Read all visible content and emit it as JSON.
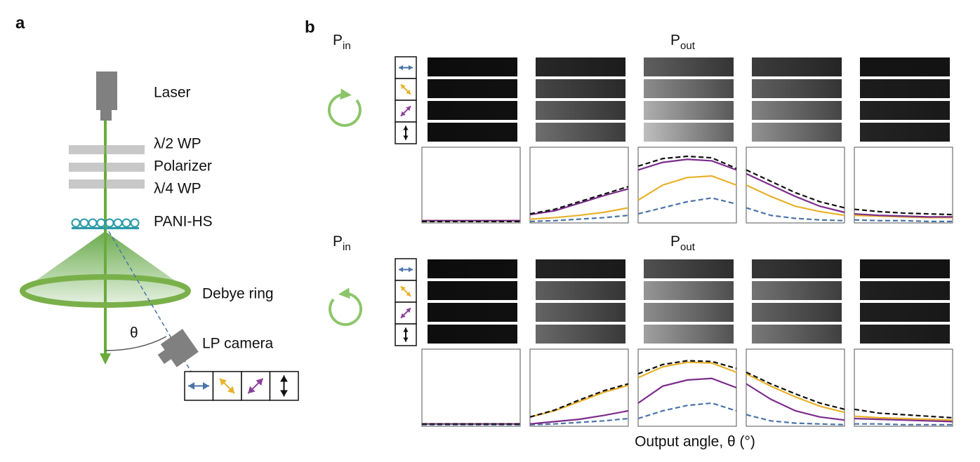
{
  "panel_a": {
    "letter": "a",
    "labels": {
      "laser": "Laser",
      "half_wave": "λ/2 WP",
      "polarizer": "Polarizer",
      "quarter_wave": "λ/4 WP",
      "sample": "PANI-HS",
      "ring": "Debye ring",
      "angle": "θ",
      "camera": "LP camera"
    }
  },
  "panel_b": {
    "letter": "b",
    "input_label": {
      "main": "P",
      "sub": "in"
    },
    "output_label": {
      "main": "P",
      "sub": "out"
    },
    "x_axis_label": "Output angle, θ (°)",
    "series_styles": [
      {
        "color": "#4a74a8",
        "dashed": true
      },
      {
        "color": "#e8b12a",
        "dashed": false
      },
      {
        "color": "#7b2d8b",
        "dashed": false
      },
      {
        "color": "#111111",
        "dashed": true
      }
    ],
    "plots": [
      {
        "panels": [
          {
            "series": [
              {
                "values": [
                  0.02,
                  0.02,
                  0.02,
                  0.02,
                  0.02
                ]
              },
              {
                "values": [
                  0.03,
                  0.03,
                  0.03,
                  0.03,
                  0.03
                ]
              },
              {
                "values": [
                  0.03,
                  0.03,
                  0.03,
                  0.03,
                  0.03
                ]
              },
              {
                "values": [
                  0.02,
                  0.02,
                  0.02,
                  0.02,
                  0.02
                ]
              }
            ]
          },
          {
            "series": [
              {
                "values": [
                  0.02,
                  0.03,
                  0.05,
                  0.07,
                  0.1
                ]
              },
              {
                "values": [
                  0.05,
                  0.07,
                  0.1,
                  0.14,
                  0.2
                ]
              },
              {
                "values": [
                  0.11,
                  0.16,
                  0.26,
                  0.36,
                  0.45
                ]
              },
              {
                "values": [
                  0.12,
                  0.18,
                  0.28,
                  0.38,
                  0.48
                ]
              }
            ]
          },
          {
            "series": [
              {
                "values": [
                  0.12,
                  0.2,
                  0.28,
                  0.33,
                  0.25
                ]
              },
              {
                "values": [
                  0.3,
                  0.5,
                  0.6,
                  0.62,
                  0.5
                ]
              },
              {
                "values": [
                  0.7,
                  0.8,
                  0.84,
                  0.82,
                  0.7
                ]
              },
              {
                "values": [
                  0.75,
                  0.85,
                  0.88,
                  0.86,
                  0.72
                ]
              }
            ]
          },
          {
            "series": [
              {
                "values": [
                  0.2,
                  0.1,
                  0.06,
                  0.04,
                  0.03
                ]
              },
              {
                "values": [
                  0.5,
                  0.35,
                  0.22,
                  0.15,
                  0.1
                ]
              },
              {
                "values": [
                  0.65,
                  0.5,
                  0.35,
                  0.22,
                  0.14
                ]
              },
              {
                "values": [
                  0.7,
                  0.55,
                  0.4,
                  0.28,
                  0.2
                ]
              }
            ]
          },
          {
            "series": [
              {
                "values": [
                  0.04,
                  0.03,
                  0.03,
                  0.02,
                  0.02
                ]
              },
              {
                "values": [
                  0.1,
                  0.09,
                  0.08,
                  0.07,
                  0.07
                ]
              },
              {
                "values": [
                  0.12,
                  0.1,
                  0.09,
                  0.08,
                  0.08
                ]
              },
              {
                "values": [
                  0.18,
                  0.15,
                  0.13,
                  0.12,
                  0.11
                ]
              }
            ]
          }
        ]
      },
      {
        "panels": [
          {
            "series": [
              {
                "values": [
                  0.02,
                  0.02,
                  0.02,
                  0.02,
                  0.02
                ]
              },
              {
                "values": [
                  0.03,
                  0.03,
                  0.03,
                  0.03,
                  0.03
                ]
              },
              {
                "values": [
                  0.03,
                  0.03,
                  0.03,
                  0.03,
                  0.03
                ]
              },
              {
                "values": [
                  0.03,
                  0.03,
                  0.03,
                  0.03,
                  0.03
                ]
              }
            ]
          },
          {
            "series": [
              {
                "values": [
                  0.02,
                  0.03,
                  0.05,
                  0.07,
                  0.1
                ]
              },
              {
                "values": [
                  0.12,
                  0.2,
                  0.32,
                  0.44,
                  0.53
                ]
              },
              {
                "values": [
                  0.03,
                  0.06,
                  0.09,
                  0.14,
                  0.2
                ]
              },
              {
                "values": [
                  0.12,
                  0.21,
                  0.34,
                  0.46,
                  0.55
                ]
              }
            ]
          },
          {
            "series": [
              {
                "values": [
                  0.1,
                  0.2,
                  0.27,
                  0.3,
                  0.2
                ]
              },
              {
                "values": [
                  0.63,
                  0.77,
                  0.83,
                  0.82,
                  0.7
                ]
              },
              {
                "values": [
                  0.3,
                  0.52,
                  0.6,
                  0.62,
                  0.5
                ]
              },
              {
                "values": [
                  0.68,
                  0.8,
                  0.85,
                  0.84,
                  0.75
                ]
              }
            ]
          },
          {
            "series": [
              {
                "values": [
                  0.15,
                  0.07,
                  0.04,
                  0.03,
                  0.02
                ]
              },
              {
                "values": [
                  0.68,
                  0.52,
                  0.38,
                  0.26,
                  0.18
                ]
              },
              {
                "values": [
                  0.55,
                  0.35,
                  0.2,
                  0.12,
                  0.08
                ]
              },
              {
                "values": [
                  0.7,
                  0.55,
                  0.42,
                  0.3,
                  0.22
                ]
              }
            ]
          },
          {
            "series": [
              {
                "values": [
                  0.03,
                  0.03,
                  0.02,
                  0.02,
                  0.02
                ]
              },
              {
                "values": [
                  0.13,
                  0.11,
                  0.1,
                  0.09,
                  0.08
                ]
              },
              {
                "values": [
                  0.1,
                  0.09,
                  0.08,
                  0.07,
                  0.06
                ]
              },
              {
                "values": [
                  0.22,
                  0.17,
                  0.15,
                  0.13,
                  0.11
                ]
              }
            ]
          }
        ]
      }
    ]
  }
}
